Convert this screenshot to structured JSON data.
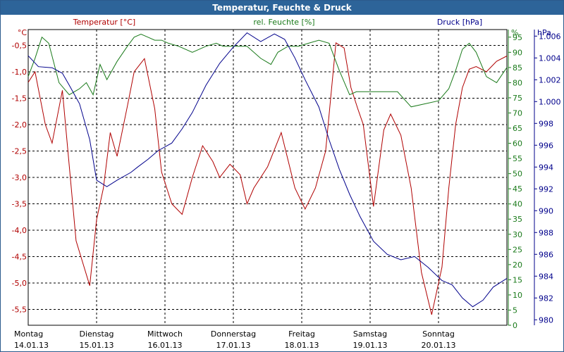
{
  "window": {
    "title": "Temperatur, Feuchte & Druck"
  },
  "colors": {
    "title_bar": "#2d6499",
    "temperature": "#b00000",
    "humidity": "#1a7a1a",
    "pressure": "#00008b",
    "grid": "#000000"
  },
  "chart_data": {
    "type": "line",
    "grid": true,
    "grid_style": "dashed",
    "x_ticks": [
      {
        "day": "Montag",
        "date": "14.01.13"
      },
      {
        "day": "Dienstag",
        "date": "15.01.13"
      },
      {
        "day": "Mittwoch",
        "date": "16.01.13"
      },
      {
        "day": "Donnerstag",
        "date": "17.01.13"
      },
      {
        "day": "Freitag",
        "date": "18.01.13"
      },
      {
        "day": "Samstag",
        "date": "19.01.13"
      },
      {
        "day": "Sonntag",
        "date": "20.01.13"
      }
    ],
    "x_range_days": [
      0,
      7
    ],
    "axes": {
      "temperature": {
        "title": "Temperatur [°C]",
        "unit": "°C",
        "ylim": [
          -5.8,
          -0.2
        ],
        "ticks": [
          "-0,5",
          "-1,0",
          "-1,5",
          "-2,0",
          "-2,5",
          "-3,0",
          "-3,5",
          "-4,0",
          "-4,5",
          "-5,0",
          "-5,5"
        ]
      },
      "humidity": {
        "title": "rel. Feuchte [%]",
        "unit": "%",
        "ylim": [
          0,
          97.5
        ],
        "ticks": [
          "95",
          "90",
          "85",
          "80",
          "75",
          "70",
          "65",
          "60",
          "55",
          "50",
          "45",
          "40",
          "35",
          "30",
          "25",
          "20",
          "15",
          "10",
          "5",
          "0"
        ]
      },
      "pressure": {
        "title": "Druck [hPa]",
        "unit": "hPa",
        "ylim": [
          979.5,
          1006.6
        ],
        "ticks": [
          "1.006",
          "1.004",
          "1.002",
          "1.000",
          "998",
          "996",
          "994",
          "992",
          "990",
          "988",
          "986",
          "984",
          "982",
          "980"
        ]
      }
    },
    "series": [
      {
        "name": "Temperatur [°C]",
        "axis": "temperature",
        "x": [
          0,
          0.1,
          0.25,
          0.35,
          0.5,
          0.7,
          0.9,
          1.0,
          1.1,
          1.2,
          1.3,
          1.45,
          1.55,
          1.7,
          1.85,
          1.95,
          2.1,
          2.25,
          2.4,
          2.55,
          2.7,
          2.8,
          2.95,
          3.1,
          3.2,
          3.3,
          3.5,
          3.7,
          3.9,
          4.05,
          4.2,
          4.35,
          4.5,
          4.62,
          4.72,
          4.82,
          4.9,
          5.05,
          5.2,
          5.3,
          5.45,
          5.6,
          5.75,
          5.9,
          6.05,
          6.15,
          6.25,
          6.35,
          6.45,
          6.55,
          6.7,
          6.85,
          7.0
        ],
        "values": [
          -1.2,
          -1.0,
          -2.0,
          -2.35,
          -1.35,
          -4.2,
          -5.05,
          -3.8,
          -3.2,
          -2.15,
          -2.6,
          -1.65,
          -1.0,
          -0.75,
          -1.7,
          -2.9,
          -3.5,
          -3.7,
          -3.0,
          -2.4,
          -2.7,
          -3.0,
          -2.75,
          -2.95,
          -3.5,
          -3.2,
          -2.8,
          -2.15,
          -3.2,
          -3.6,
          -3.2,
          -2.5,
          -0.45,
          -0.55,
          -1.3,
          -1.7,
          -2.0,
          -3.55,
          -2.1,
          -1.8,
          -2.2,
          -3.2,
          -4.8,
          -5.6,
          -4.7,
          -3.2,
          -2.0,
          -1.3,
          -0.95,
          -0.9,
          -1.0,
          -0.8,
          -0.7
        ],
        "color": "#b00000"
      },
      {
        "name": "rel. Feuchte [%]",
        "axis": "humidity",
        "x": [
          0,
          0.1,
          0.2,
          0.3,
          0.45,
          0.6,
          0.75,
          0.85,
          0.95,
          1.05,
          1.15,
          1.3,
          1.45,
          1.55,
          1.65,
          1.75,
          1.85,
          1.95,
          2.05,
          2.2,
          2.4,
          2.6,
          2.75,
          2.85,
          3.0,
          3.2,
          3.4,
          3.55,
          3.65,
          3.8,
          3.95,
          4.1,
          4.25,
          4.4,
          4.55,
          4.7,
          4.8,
          4.9,
          5.05,
          5.2,
          5.4,
          5.6,
          5.8,
          6.0,
          6.15,
          6.25,
          6.35,
          6.45,
          6.55,
          6.7,
          6.85,
          7.0
        ],
        "values": [
          82,
          88,
          95,
          93,
          80,
          76,
          78,
          80,
          76,
          86,
          81,
          87,
          92,
          95,
          96,
          95,
          94,
          94,
          93,
          92,
          90,
          92,
          93,
          92,
          92,
          92,
          88,
          86,
          90,
          92,
          92,
          93,
          94,
          93,
          84,
          76,
          77,
          77,
          77,
          77,
          77,
          72,
          73,
          74,
          78,
          84,
          91,
          93,
          90,
          82,
          80,
          85
        ],
        "color": "#1a7a1a"
      },
      {
        "name": "Druck [hPa]",
        "axis": "pressure",
        "x": [
          0,
          0.15,
          0.35,
          0.5,
          0.6,
          0.75,
          0.9,
          1.0,
          1.15,
          1.3,
          1.5,
          1.6,
          1.75,
          1.9,
          2.1,
          2.25,
          2.4,
          2.6,
          2.8,
          3.0,
          3.2,
          3.4,
          3.6,
          3.75,
          3.9,
          4.05,
          4.25,
          4.4,
          4.55,
          4.7,
          4.85,
          5.05,
          5.25,
          5.45,
          5.65,
          5.85,
          6.05,
          6.2,
          6.35,
          6.5,
          6.65,
          6.8,
          7.0
        ],
        "values": [
          1004.2,
          1003.2,
          1003.1,
          1002.6,
          1001.5,
          999.8,
          996.5,
          992.8,
          992.2,
          992.8,
          993.5,
          994.0,
          994.7,
          995.5,
          996.2,
          997.5,
          999.0,
          1001.5,
          1003.5,
          1005.0,
          1006.3,
          1005.5,
          1006.2,
          1005.7,
          1004.0,
          1002.0,
          999.5,
          996.5,
          993.8,
          991.5,
          989.5,
          987.2,
          986.0,
          985.5,
          985.8,
          984.8,
          983.6,
          983.2,
          982.0,
          981.2,
          981.8,
          983.0,
          983.8
        ],
        "color": "#00008b"
      }
    ]
  }
}
